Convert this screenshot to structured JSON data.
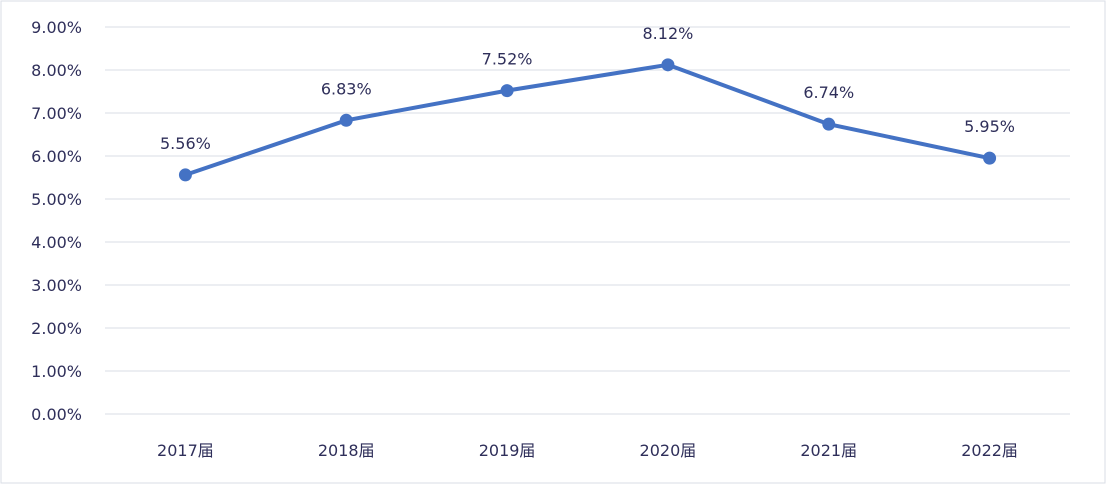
{
  "chart_data": {
    "type": "line",
    "categories": [
      "2017届",
      "2018届",
      "2019届",
      "2020届",
      "2021届",
      "2022届"
    ],
    "values": [
      5.56,
      6.83,
      7.52,
      8.12,
      6.74,
      5.95
    ],
    "data_labels": [
      "5.56%",
      "6.83%",
      "7.52%",
      "8.12%",
      "6.74%",
      "5.95%"
    ],
    "title": "",
    "xlabel": "",
    "ylabel": "",
    "ylim": [
      0,
      9
    ],
    "yticks": [
      "0.00%",
      "1.00%",
      "2.00%",
      "3.00%",
      "4.00%",
      "5.00%",
      "6.00%",
      "7.00%",
      "8.00%",
      "9.00%"
    ],
    "grid": true,
    "legend": "none"
  },
  "colors": {
    "series": "#4472c4",
    "grid": "#d9dde6",
    "text": "#2f2f5a",
    "frame": "#d9dde6"
  }
}
